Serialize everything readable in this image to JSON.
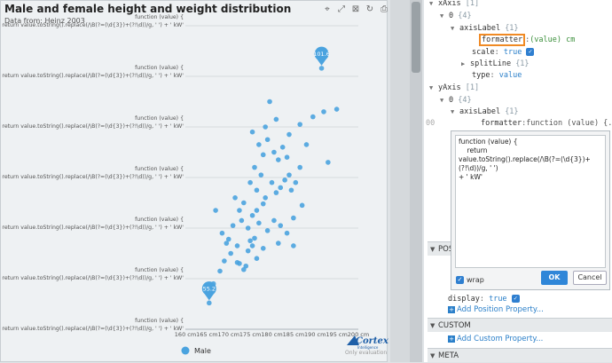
{
  "chart": {
    "title": "Male and female height and weight distribution",
    "subtitle": "Data from: Heinz 2003",
    "toolbar": {
      "zoom_label": "⌖",
      "zoom_reset_label": "⤢",
      "clear_label": "⊠",
      "restore_label": "↻",
      "save_label": "⎙"
    },
    "y_tick_label_line1": "function (value) {",
    "y_tick_label_line2": "return value.toString().replace(/\\B(?=(\\d{3})+(?!\\d))/g, ' ') + ' kW'",
    "brand": "Cortex",
    "brand_sub": "Intelligence",
    "watermark": "Only evaluation",
    "legend_label": "Male",
    "pin_labels": [
      "101.6",
      "55.2"
    ],
    "color": "#4aa3df"
  },
  "chart_data": {
    "type": "scatter",
    "title": "Male and female height and weight distribution",
    "subtitle": "Data from: Heinz 2003",
    "xlabel": "",
    "ylabel": "",
    "xlim": [
      160,
      200
    ],
    "ylim": [
      50,
      110
    ],
    "x_ticks": [
      "160 cm",
      "165 cm",
      "170 cm",
      "175 cm",
      "180 cm",
      "185 cm",
      "190 cm",
      "195 cm",
      "200 cm"
    ],
    "y_tick_count": 7,
    "series": [
      {
        "name": "Male",
        "color": "#4aa3df",
        "points": [
          [
            165.5,
            55.2
          ],
          [
            166.5,
            59.0
          ],
          [
            168.0,
            61.5
          ],
          [
            169.0,
            63.5
          ],
          [
            170.5,
            65.0
          ],
          [
            170.0,
            67.8
          ],
          [
            168.5,
            69.0
          ],
          [
            171.0,
            70.5
          ],
          [
            172.0,
            63.2
          ],
          [
            173.5,
            61.8
          ],
          [
            172.5,
            63.0
          ],
          [
            174.0,
            62.5
          ],
          [
            174.5,
            65.5
          ],
          [
            175.5,
            66.5
          ],
          [
            176.0,
            68.0
          ],
          [
            175.0,
            67.5
          ],
          [
            174.5,
            70.0
          ],
          [
            173.0,
            71.5
          ],
          [
            172.5,
            73.5
          ],
          [
            173.5,
            75.0
          ],
          [
            175.5,
            72.5
          ],
          [
            176.5,
            73.5
          ],
          [
            177.0,
            71.0
          ],
          [
            178.0,
            74.8
          ],
          [
            178.5,
            76.0
          ],
          [
            176.5,
            77.5
          ],
          [
            175.0,
            79.0
          ],
          [
            177.5,
            80.5
          ],
          [
            180.0,
            79.0
          ],
          [
            181.0,
            77.0
          ],
          [
            182.0,
            78.0
          ],
          [
            183.0,
            79.5
          ],
          [
            184.5,
            77.5
          ],
          [
            185.5,
            79.0
          ],
          [
            186.5,
            82.0
          ],
          [
            183.5,
            84.0
          ],
          [
            182.5,
            86.0
          ],
          [
            181.5,
            83.5
          ],
          [
            180.5,
            85.0
          ],
          [
            179.0,
            87.5
          ],
          [
            178.0,
            84.5
          ],
          [
            177.0,
            86.5
          ],
          [
            175.5,
            89.0
          ],
          [
            178.5,
            90.0
          ],
          [
            181.0,
            91.5
          ],
          [
            184.0,
            88.5
          ],
          [
            186.5,
            90.5
          ],
          [
            188.0,
            86.5
          ],
          [
            189.5,
            92.0
          ],
          [
            192.0,
            93.0
          ],
          [
            195.0,
            93.5
          ],
          [
            193.0,
            83.0
          ],
          [
            187.0,
            74.5
          ],
          [
            185.0,
            72.0
          ],
          [
            182.0,
            70.5
          ],
          [
            180.5,
            71.5
          ],
          [
            179.0,
            69.5
          ],
          [
            181.5,
            67.0
          ],
          [
            183.5,
            69.0
          ],
          [
            185.0,
            66.5
          ],
          [
            178.0,
            66.0
          ],
          [
            176.5,
            64.0
          ],
          [
            172.0,
            66.5
          ],
          [
            169.5,
            67.0
          ],
          [
            171.5,
            76.0
          ],
          [
            167.0,
            73.5
          ],
          [
            179.5,
            95.0
          ],
          [
            191.5,
            101.6
          ],
          [
            184.0,
            80.5
          ],
          [
            176.0,
            82.0
          ]
        ]
      }
    ],
    "annotations": [
      {
        "type": "pin",
        "label": "101.6",
        "x": 191.5,
        "y": 101.6
      },
      {
        "type": "pin",
        "label": "55.2",
        "x": 165.5,
        "y": 55.2
      }
    ],
    "legend": [
      "Male"
    ],
    "grid": true
  },
  "tree": {
    "xaxis": {
      "label": "xAxis",
      "count": "[1]"
    },
    "xaxis_0": {
      "label": "0",
      "count": "{4}"
    },
    "xaxis_axislabel": {
      "label": "axisLabel",
      "count": "{1}"
    },
    "xaxis_formatter": {
      "key": "formatter",
      "value": "(value) cm"
    },
    "xaxis_scale": {
      "key": "scale",
      "value": "true"
    },
    "xaxis_splitline": {
      "label": "splitLine",
      "count": "{1}"
    },
    "xaxis_type": {
      "key": "type",
      "value": "value"
    },
    "yaxis": {
      "label": "yAxis",
      "count": "[1]"
    },
    "yaxis_0": {
      "label": "0",
      "count": "{4}"
    },
    "yaxis_axislabel": {
      "label": "axisLabel",
      "count": "{1}"
    },
    "yaxis_formatter": {
      "key": "formatter",
      "value": "function (value) {..."
    },
    "row_number": "00"
  },
  "editor": {
    "code": "function (value) {\n    return\nvalue.toString().replace(/\\B(?=(\\d{3})+(?!\\d))/g, ' ')\n+ ' kW'",
    "wrap_label": "wrap",
    "ok_label": "OK",
    "cancel_label": "Cancel"
  },
  "position_section": {
    "label": "POSITION"
  },
  "display_row": {
    "key": "display",
    "value": "true"
  },
  "add_position": "Add Position Property...",
  "custom_section": {
    "label": "CUSTOM"
  },
  "add_custom": "Add Custom Property...",
  "meta_section": {
    "label": "META"
  }
}
